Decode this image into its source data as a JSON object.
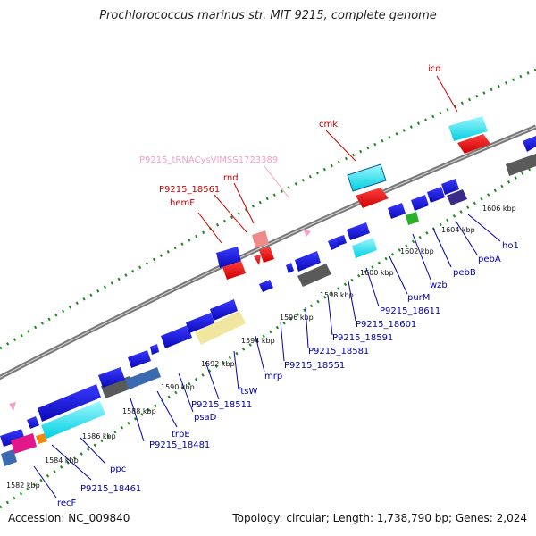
{
  "title": "Prochlorococcus marinus str. MIT 9215, complete genome",
  "footer": {
    "accession": "Accession: NC_009840",
    "topology": "Topology: circular; Length: 1,738,790 bp; Genes: 2,024"
  },
  "scale_ticks": [
    "1582 kbp",
    "1584 kbp",
    "1586 kbp",
    "1588 kbp",
    "1590 kbp",
    "1592 kbp",
    "1594 kbp",
    "1596 kbp",
    "1598 kbp",
    "1600 kbp",
    "1602 kbp",
    "1604 kbp",
    "1606 kbp"
  ],
  "upper_labels": [
    "hemF",
    "P9215_18561",
    "rnd",
    "P9215_tRNACysVIMSS1723389",
    "cmk",
    "icd"
  ],
  "lower_labels": [
    "recF",
    "P9215_18461",
    "ppc",
    "trpE",
    "P9215_18481",
    "psaD",
    "P9215_18511",
    "ftsW",
    "mrp",
    "P9215_18551",
    "P9215_18581",
    "P9215_18591",
    "P9215_18601",
    "P9215_18611",
    "purM",
    "wzb",
    "pebB",
    "pebA",
    "ho1"
  ],
  "colors": {
    "backbone": "#8a8a8a",
    "gene": "#1a1ad6",
    "trna": "#f4a0c8",
    "upper_label": "#cc0000",
    "lower_label": "#0000aa",
    "dots": "#1a8a1a"
  }
}
